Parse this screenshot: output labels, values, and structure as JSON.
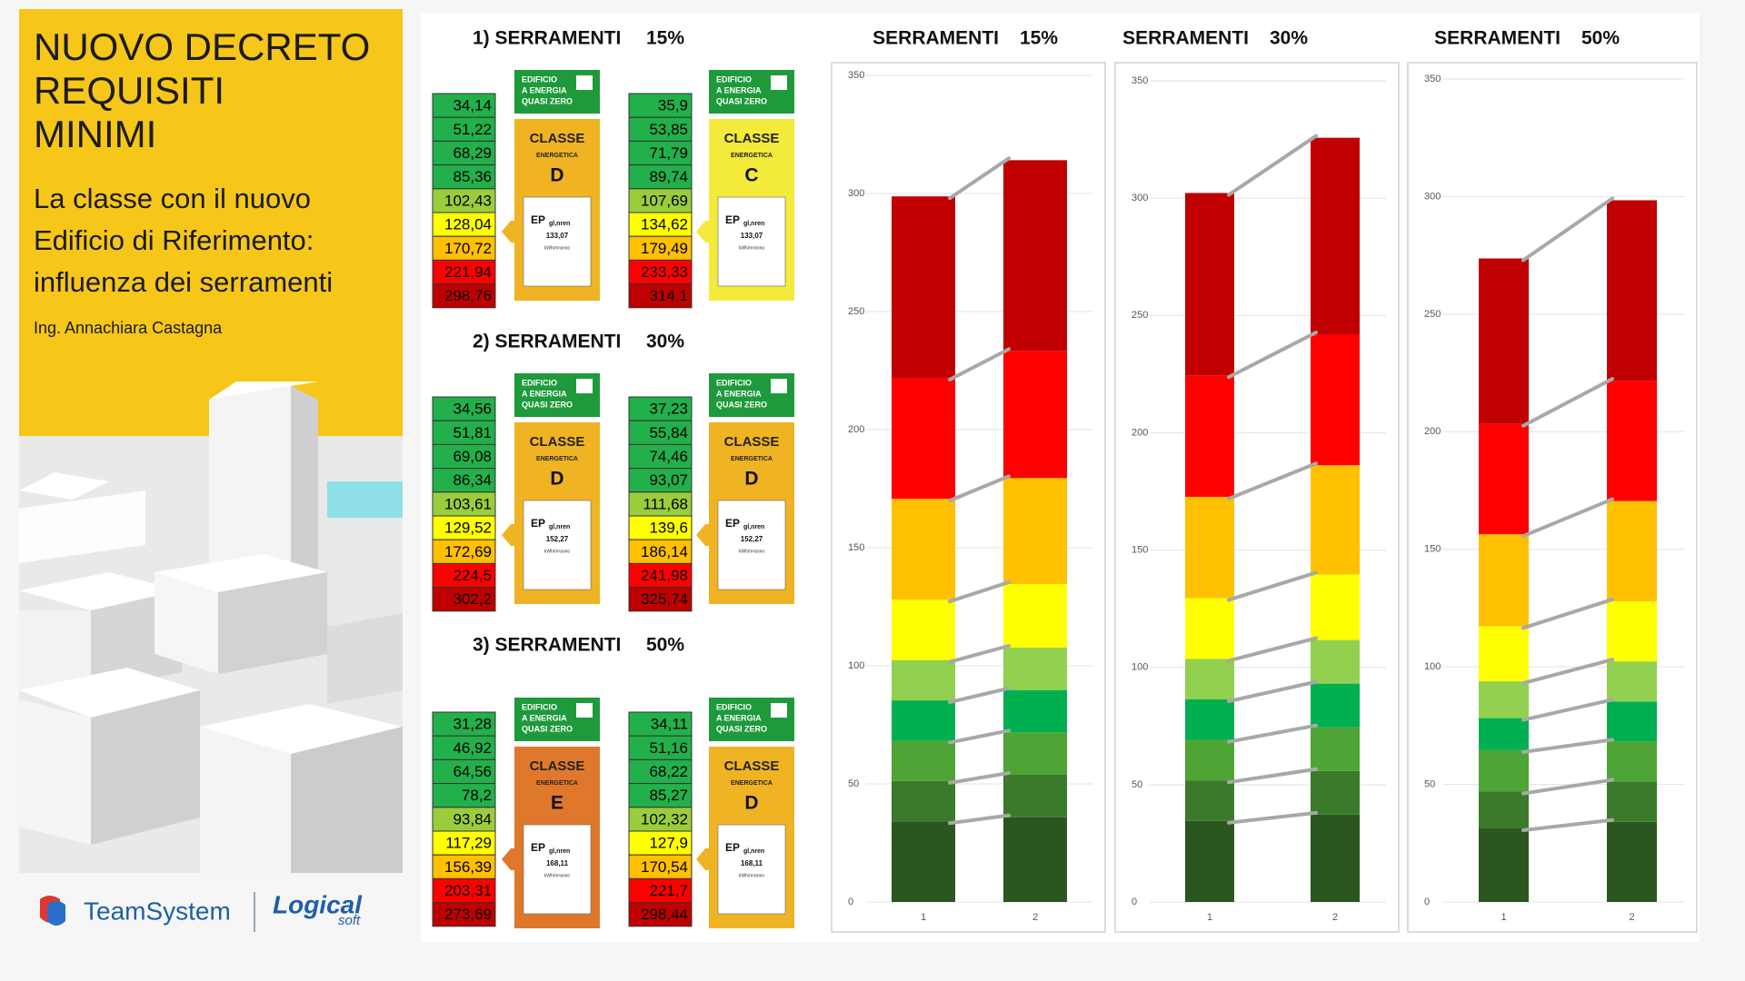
{
  "sidebar": {
    "title_lines": [
      "NUOVO DECRETO",
      "REQUISITI",
      "MINIMI"
    ],
    "subtitle_lines": [
      "La classe con il nuovo",
      "Edificio di Riferimento:",
      "influenza dei serramenti"
    ],
    "author": "Ing. Annachiara Castagna",
    "logo_left": "TeamSystem",
    "logo_right": "Logical",
    "logo_right_sub": "soft"
  },
  "groups": [
    {
      "title": "1) SERRAMENTI",
      "percent": "15%",
      "tables": [
        {
          "values": [
            "34,14",
            "51,22",
            "68,29",
            "85,36",
            "102,43",
            "128,04",
            "170,72",
            "221,94",
            "298,76"
          ],
          "label": {
            "badge": [
              "EDIFICIO",
              "A ENERGIA",
              "QUASI ZERO"
            ],
            "classe": "CLASSE",
            "energetica": "ENERGETICA",
            "letter": "D",
            "ep": "EP",
            "ep_sub": "gl,nren",
            "ep_value": "133,07",
            "unit": "kWh/m²anno",
            "color": "#f0b323"
          }
        },
        {
          "values": [
            "35,9",
            "53,85",
            "71,79",
            "89,74",
            "107,69",
            "134,62",
            "179,49",
            "233,33",
            "314,1"
          ],
          "label": {
            "badge": [
              "EDIFICIO",
              "A ENERGIA",
              "QUASI ZERO"
            ],
            "classe": "CLASSE",
            "energetica": "ENERGETICA",
            "letter": "C",
            "ep": "EP",
            "ep_sub": "gl,nren",
            "ep_value": "133,07",
            "unit": "kWh/m²anno",
            "color": "#f3ea3c"
          }
        }
      ]
    },
    {
      "title": "2) SERRAMENTI",
      "percent": "30%",
      "tables": [
        {
          "values": [
            "34,56",
            "51,81",
            "69,08",
            "86,34",
            "103,61",
            "129,52",
            "172,69",
            "224,5",
            "302,2"
          ],
          "label": {
            "badge": [
              "EDIFICIO",
              "A ENERGIA",
              "QUASI ZERO"
            ],
            "classe": "CLASSE",
            "energetica": "ENERGETICA",
            "letter": "D",
            "ep": "EP",
            "ep_sub": "gl,nren",
            "ep_value": "152,27",
            "unit": "kWh/m²anno",
            "color": "#f0b323"
          }
        },
        {
          "values": [
            "37,23",
            "55,84",
            "74,46",
            "93,07",
            "111,68",
            "139,6",
            "186,14",
            "241,98",
            "325,74"
          ],
          "label": {
            "badge": [
              "EDIFICIO",
              "A ENERGIA",
              "QUASI ZERO"
            ],
            "classe": "CLASSE",
            "energetica": "ENERGETICA",
            "letter": "D",
            "ep": "EP",
            "ep_sub": "gl,nren",
            "ep_value": "152,27",
            "unit": "kWh/m²anno",
            "color": "#f0b323"
          }
        }
      ]
    },
    {
      "title": "3) SERRAMENTI",
      "percent": "50%",
      "tables": [
        {
          "values": [
            "31,28",
            "46,92",
            "64,56",
            "78,2",
            "93,84",
            "117,29",
            "156,39",
            "203,31",
            "273,69"
          ],
          "label": {
            "badge": [
              "EDIFICIO",
              "A ENERGIA",
              "QUASI ZERO"
            ],
            "classe": "CLASSE",
            "energetica": "ENERGETICA",
            "letter": "E",
            "ep": "EP",
            "ep_sub": "gl,nren",
            "ep_value": "168,11",
            "unit": "kWh/m²anno",
            "color": "#e0782c"
          }
        },
        {
          "values": [
            "34,11",
            "51,16",
            "68,22",
            "85,27",
            "102,32",
            "127,9",
            "170,54",
            "221,7",
            "298,44"
          ],
          "label": {
            "badge": [
              "EDIFICIO",
              "A ENERGIA",
              "QUASI ZERO"
            ],
            "classe": "CLASSE",
            "energetica": "ENERGETICA",
            "letter": "D",
            "ep": "EP",
            "ep_sub": "gl,nren",
            "ep_value": "168,11",
            "unit": "kWh/m²anno",
            "color": "#f0b323"
          }
        }
      ]
    }
  ],
  "chart_data": [
    {
      "type": "bar",
      "stacked": true,
      "title": "SERRAMENTI",
      "title_percent": "15%",
      "categories": [
        "1",
        "2"
      ],
      "ylim": [
        0,
        350
      ],
      "yticks": [
        0,
        50,
        100,
        150,
        200,
        250,
        300,
        350
      ],
      "grid": true,
      "series": [
        {
          "color": "#2b561f",
          "values": [
            34.14,
            35.9
          ]
        },
        {
          "color": "#3b7a2a",
          "values": [
            17.08,
            17.95
          ]
        },
        {
          "color": "#4ea435",
          "values": [
            17.07,
            17.94
          ]
        },
        {
          "color": "#00b050",
          "values": [
            17.07,
            17.95
          ]
        },
        {
          "color": "#92d050",
          "values": [
            17.07,
            17.95
          ]
        },
        {
          "color": "#ffff00",
          "values": [
            25.61,
            26.93
          ]
        },
        {
          "color": "#ffc000",
          "values": [
            42.68,
            44.87
          ]
        },
        {
          "color": "#ff0000",
          "values": [
            51.22,
            53.84
          ]
        },
        {
          "color": "#c00000",
          "values": [
            76.82,
            80.77
          ]
        }
      ]
    },
    {
      "type": "bar",
      "stacked": true,
      "title": "SERRAMENTI",
      "title_percent": "30%",
      "categories": [
        "1",
        "2"
      ],
      "ylim": [
        0,
        350
      ],
      "yticks": [
        0,
        50,
        100,
        150,
        200,
        250,
        300,
        350
      ],
      "grid": true,
      "series": [
        {
          "color": "#2b561f",
          "values": [
            34.56,
            37.23
          ]
        },
        {
          "color": "#3b7a2a",
          "values": [
            17.25,
            18.61
          ]
        },
        {
          "color": "#4ea435",
          "values": [
            17.27,
            18.62
          ]
        },
        {
          "color": "#00b050",
          "values": [
            17.26,
            18.61
          ]
        },
        {
          "color": "#92d050",
          "values": [
            17.27,
            18.61
          ]
        },
        {
          "color": "#ffff00",
          "values": [
            25.91,
            27.92
          ]
        },
        {
          "color": "#ffc000",
          "values": [
            43.17,
            46.54
          ]
        },
        {
          "color": "#ff0000",
          "values": [
            51.81,
            55.84
          ]
        },
        {
          "color": "#c00000",
          "values": [
            77.7,
            83.76
          ]
        }
      ]
    },
    {
      "type": "bar",
      "stacked": true,
      "title": "SERRAMENTI",
      "title_percent": "50%",
      "categories": [
        "1",
        "2"
      ],
      "ylim": [
        0,
        350
      ],
      "yticks": [
        0,
        50,
        100,
        150,
        200,
        250,
        300,
        350
      ],
      "grid": true,
      "series": [
        {
          "color": "#2b561f",
          "values": [
            31.28,
            34.11
          ]
        },
        {
          "color": "#3b7a2a",
          "values": [
            15.64,
            17.05
          ]
        },
        {
          "color": "#4ea435",
          "values": [
            17.64,
            17.06
          ]
        },
        {
          "color": "#00b050",
          "values": [
            13.64,
            17.05
          ]
        },
        {
          "color": "#92d050",
          "values": [
            15.64,
            17.05
          ]
        },
        {
          "color": "#ffff00",
          "values": [
            23.45,
            25.58
          ]
        },
        {
          "color": "#ffc000",
          "values": [
            39.1,
            42.64
          ]
        },
        {
          "color": "#ff0000",
          "values": [
            46.92,
            51.16
          ]
        },
        {
          "color": "#c00000",
          "values": [
            70.38,
            76.74
          ]
        }
      ]
    }
  ]
}
